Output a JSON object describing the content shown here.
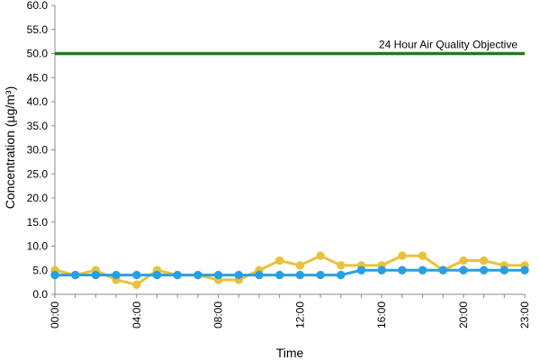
{
  "chart_data": {
    "type": "line",
    "title": "",
    "xlabel": "Time",
    "ylabel": "Concentration (µg/m³)",
    "ylim": [
      0,
      60
    ],
    "y_ticks": [
      "0.0",
      "5.0",
      "10.0",
      "15.0",
      "20.0",
      "25.0",
      "30.0",
      "35.0",
      "40.0",
      "45.0",
      "50.0",
      "55.0",
      "60.0"
    ],
    "x": [
      "00:00",
      "01:00",
      "02:00",
      "03:00",
      "04:00",
      "05:00",
      "06:00",
      "07:00",
      "08:00",
      "09:00",
      "10:00",
      "11:00",
      "12:00",
      "13:00",
      "14:00",
      "15:00",
      "16:00",
      "17:00",
      "18:00",
      "19:00",
      "20:00",
      "21:00",
      "22:00",
      "23:00"
    ],
    "x_tick_labels": [
      "00:00",
      "04:00",
      "08:00",
      "12:00",
      "16:00",
      "20:00",
      "23:00"
    ],
    "grid": false,
    "legend": "none",
    "reference_line": {
      "value": 50,
      "label": "24 Hour Air Quality Objective",
      "color": "#1f7a1f"
    },
    "series": [
      {
        "color": "#e8c23a",
        "values": [
          5,
          4,
          5,
          3,
          2,
          5,
          4,
          4,
          3,
          3,
          5,
          7,
          6,
          8,
          6,
          6,
          6,
          8,
          8,
          5,
          7,
          7,
          6,
          6
        ]
      },
      {
        "color": "#2a9fe0",
        "values": [
          4,
          4,
          4,
          4,
          4,
          4,
          4,
          4,
          4,
          4,
          4,
          4,
          4,
          4,
          4,
          5,
          5,
          5,
          5,
          5,
          5,
          5,
          5,
          5
        ]
      }
    ]
  }
}
